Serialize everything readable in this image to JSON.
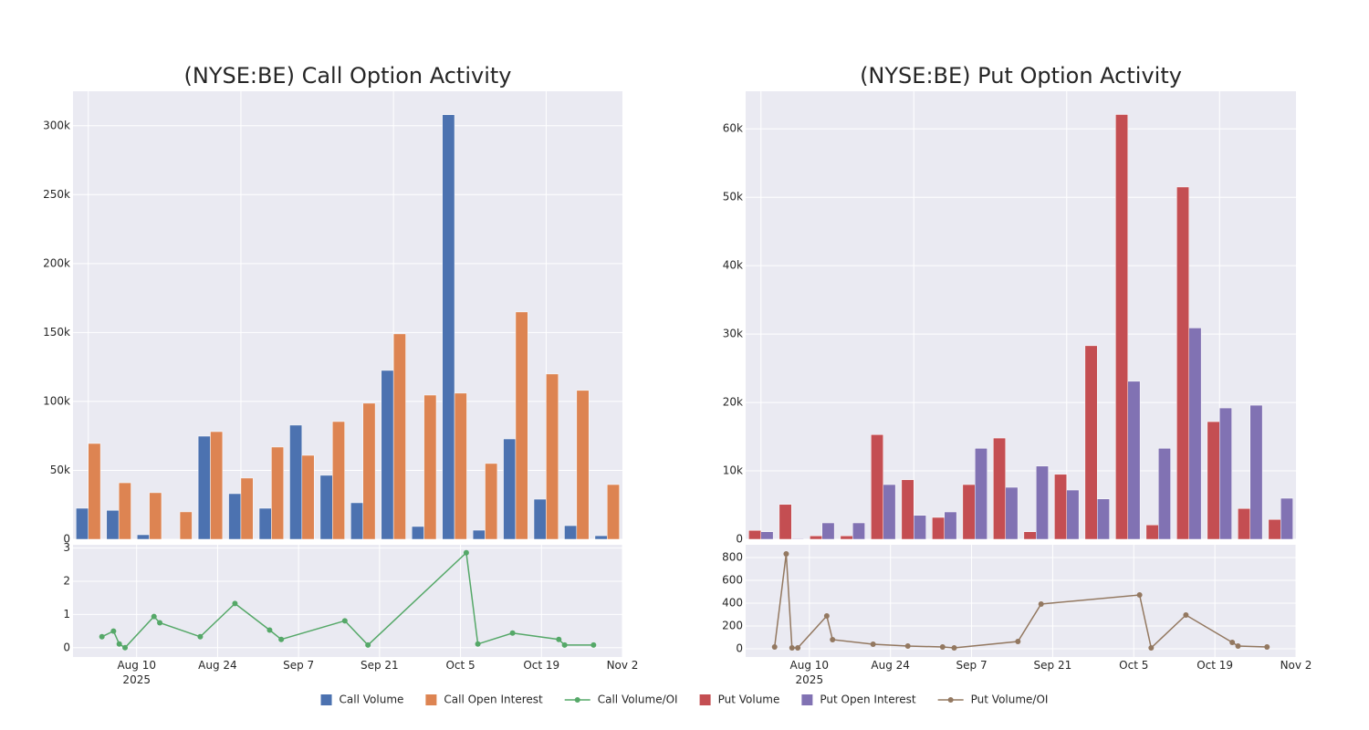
{
  "legend": "lower center",
  "chart_data": [
    {
      "type": "bar",
      "title": "(NYSE:BE) Call Option Activity",
      "categories": [
        null,
        null,
        null,
        null,
        null,
        null,
        null,
        null,
        null,
        null,
        null,
        null,
        null,
        null,
        null,
        null,
        null,
        null
      ],
      "series": [
        {
          "name": "Call Volume",
          "color": "#4c72b0",
          "values": [
            22500,
            21000,
            3300,
            0,
            74800,
            33100,
            22500,
            82800,
            46400,
            26500,
            122500,
            9300,
            308000,
            6600,
            72800,
            29100,
            9900,
            2600
          ]
        },
        {
          "name": "Call Open Interest",
          "color": "#dd8452",
          "values": [
            69500,
            41000,
            33800,
            19900,
            78100,
            44400,
            66900,
            60900,
            85400,
            98700,
            149000,
            104600,
            106000,
            55000,
            164900,
            119900,
            108000,
            39700
          ]
        }
      ],
      "ylim": [
        0,
        325000
      ],
      "yticks": [
        0,
        {
          "value": 50000,
          "label": "50k"
        },
        {
          "value": 100000,
          "label": "100k"
        },
        {
          "value": 150000,
          "label": "150k"
        },
        {
          "value": 200000,
          "label": "200k"
        },
        {
          "value": 250000,
          "label": "250k"
        },
        {
          "value": 300000,
          "label": "300k"
        }
      ],
      "grid": true
    },
    {
      "type": "line",
      "x": [
        "2025-08-04",
        "2025-08-06",
        "2025-08-07",
        "2025-08-08",
        "2025-08-13",
        "2025-08-14",
        "2025-08-21",
        "2025-08-27",
        "2025-09-02",
        "2025-09-04",
        "2025-09-15",
        "2025-09-19",
        "2025-10-06",
        "2025-10-08",
        "2025-10-14",
        "2025-10-22",
        "2025-10-23",
        "2025-10-28"
      ],
      "series": [
        {
          "name": "Call Volume/OI",
          "color": "#55a868",
          "values": [
            0.33,
            0.5,
            0.11,
            0.0,
            0.94,
            0.75,
            0.33,
            1.33,
            0.53,
            0.25,
            0.81,
            0.08,
            2.86,
            0.11,
            0.44,
            0.25,
            0.08,
            0.08
          ]
        }
      ],
      "xlim": [
        "2025-07-30",
        "2025-11-02"
      ],
      "xticks": [
        {
          "value": "2025-08-10",
          "label": "Aug 10\n2025"
        },
        {
          "value": "2025-08-24",
          "label": "Aug 24"
        },
        {
          "value": "2025-09-07",
          "label": "Sep 7"
        },
        {
          "value": "2025-09-21",
          "label": "Sep 21"
        },
        {
          "value": "2025-10-05",
          "label": "Oct 5"
        },
        {
          "value": "2025-10-19",
          "label": "Oct 19"
        },
        {
          "value": "2025-11-02",
          "label": "Nov 2"
        }
      ],
      "ylim": [
        -0.28,
        3.1
      ],
      "yticks": [
        0,
        1,
        2,
        3
      ],
      "grid": true
    },
    {
      "type": "bar",
      "title": "(NYSE:BE) Put Option Activity",
      "categories": [
        null,
        null,
        null,
        null,
        null,
        null,
        null,
        null,
        null,
        null,
        null,
        null,
        null,
        null,
        null,
        null,
        null,
        null
      ],
      "series": [
        {
          "name": "Put Volume",
          "color": "#c44e52",
          "values": [
            1300,
            5100,
            500,
            500,
            15300,
            8700,
            3200,
            8000,
            14800,
            1100,
            9500,
            28300,
            62100,
            2100,
            51500,
            17200,
            4500,
            2900
          ]
        },
        {
          "name": "Put Open Interest",
          "color": "#8172b3",
          "values": [
            1100,
            100,
            2400,
            2400,
            8000,
            3500,
            4000,
            13300,
            7600,
            10700,
            7200,
            5900,
            23100,
            13300,
            30900,
            19200,
            19600,
            6000
          ]
        }
      ],
      "ylim": [
        0,
        65500
      ],
      "yticks": [
        0,
        {
          "value": 10000,
          "label": "10k"
        },
        {
          "value": 20000,
          "label": "20k"
        },
        {
          "value": 30000,
          "label": "30k"
        },
        {
          "value": 40000,
          "label": "40k"
        },
        {
          "value": 50000,
          "label": "50k"
        },
        {
          "value": 60000,
          "label": "60k"
        }
      ],
      "grid": true
    },
    {
      "type": "line",
      "x": [
        "2025-08-04",
        "2025-08-06",
        "2025-08-07",
        "2025-08-08",
        "2025-08-13",
        "2025-08-14",
        "2025-08-21",
        "2025-08-27",
        "2025-09-02",
        "2025-09-04",
        "2025-09-15",
        "2025-09-19",
        "2025-10-06",
        "2025-10-08",
        "2025-10-14",
        "2025-10-22",
        "2025-10-23",
        "2025-10-28"
      ],
      "series": [
        {
          "name": "Put Volume/OI",
          "color": "#937860",
          "values": [
            16,
            832,
            8,
            8,
            288,
            80,
            40,
            24,
            16,
            8,
            64,
            392,
            472,
            8,
            296,
            56,
            24,
            16
          ]
        }
      ],
      "xlim": [
        "2025-07-30",
        "2025-11-02"
      ],
      "xticks": [
        {
          "value": "2025-08-10",
          "label": "Aug 10\n2025"
        },
        {
          "value": "2025-08-24",
          "label": "Aug 24"
        },
        {
          "value": "2025-09-07",
          "label": "Sep 7"
        },
        {
          "value": "2025-09-21",
          "label": "Sep 21"
        },
        {
          "value": "2025-10-05",
          "label": "Oct 5"
        },
        {
          "value": "2025-10-19",
          "label": "Oct 19"
        },
        {
          "value": "2025-11-02",
          "label": "Nov 2"
        }
      ],
      "ylim": [
        -72,
        912
      ],
      "yticks": [
        0,
        200,
        400,
        600,
        800
      ],
      "grid": true
    }
  ]
}
